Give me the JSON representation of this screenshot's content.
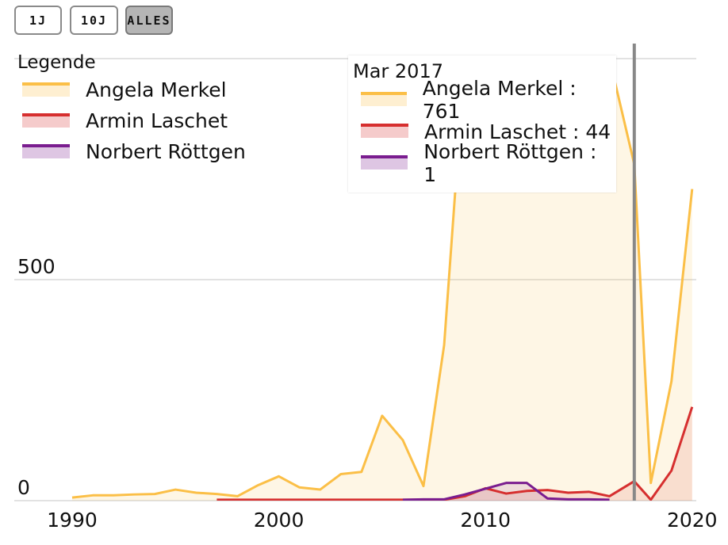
{
  "range_buttons": [
    {
      "label": "1J",
      "active": false
    },
    {
      "label": "10J",
      "active": false
    },
    {
      "label": "ALLES",
      "active": true
    }
  ],
  "legend": {
    "title": "Legende",
    "items": [
      "Angela Merkel",
      "Armin Laschet",
      "Norbert Röttgen"
    ]
  },
  "tooltip": {
    "title": "Mar 2017",
    "rows": [
      {
        "label": "Angela Merkel : 761"
      },
      {
        "label": "Armin Laschet : 44"
      },
      {
        "label": "Norbert Röttgen : 1"
      }
    ]
  },
  "colors": {
    "merkel": "#fbbf47",
    "laschet": "#d62f2f",
    "roettgen": "#7a1d8f",
    "grid": "#d9d9d9",
    "cursor": "#888888"
  },
  "chart_data": {
    "type": "area",
    "title": "",
    "xlabel": "",
    "ylabel": "",
    "x_ticks": [
      1990,
      2000,
      2010,
      2020
    ],
    "y_ticks": [
      0,
      500
    ],
    "xlim": [
      1987.2,
      2020.2
    ],
    "ylim": [
      0,
      1000
    ],
    "grid": true,
    "legend_position": "top-left",
    "cursor_x": 2017.2,
    "series": [
      {
        "name": "Angela Merkel",
        "x": [
          1990,
          1991,
          1992,
          1993,
          1994,
          1995,
          1996,
          1997,
          1998,
          1999,
          2000,
          2001,
          2002,
          2003,
          2004,
          2005,
          2006,
          2007,
          2008,
          2009,
          2010,
          2011,
          2012,
          2013,
          2014,
          2015,
          2016,
          2017.2,
          2018,
          2019,
          2020
        ],
        "y": [
          7,
          12,
          12,
          14,
          15,
          25,
          18,
          15,
          10,
          35,
          55,
          30,
          25,
          60,
          65,
          192,
          137,
          33,
          352,
          1000,
          1000,
          1000,
          1000,
          1000,
          1000,
          1000,
          1000,
          761,
          40,
          270,
          705
        ]
      },
      {
        "name": "Armin Laschet",
        "x": [
          1997,
          1998,
          2000,
          2002,
          2004,
          2006,
          2008,
          2009,
          2010,
          2011,
          2012,
          2013,
          2014,
          2015,
          2016,
          2017.2,
          2018,
          2019,
          2020
        ],
        "y": [
          2,
          2,
          2,
          2,
          2,
          2,
          2,
          10,
          28,
          16,
          22,
          24,
          18,
          20,
          10,
          44,
          2,
          68,
          212
        ]
      },
      {
        "name": "Norbert Röttgen",
        "x": [
          2006,
          2007,
          2008,
          2009,
          2010,
          2011,
          2012,
          2013,
          2014,
          2015,
          2016
        ],
        "y": [
          2,
          3,
          3,
          14,
          27,
          40,
          40,
          5,
          3,
          3,
          2
        ]
      }
    ]
  }
}
